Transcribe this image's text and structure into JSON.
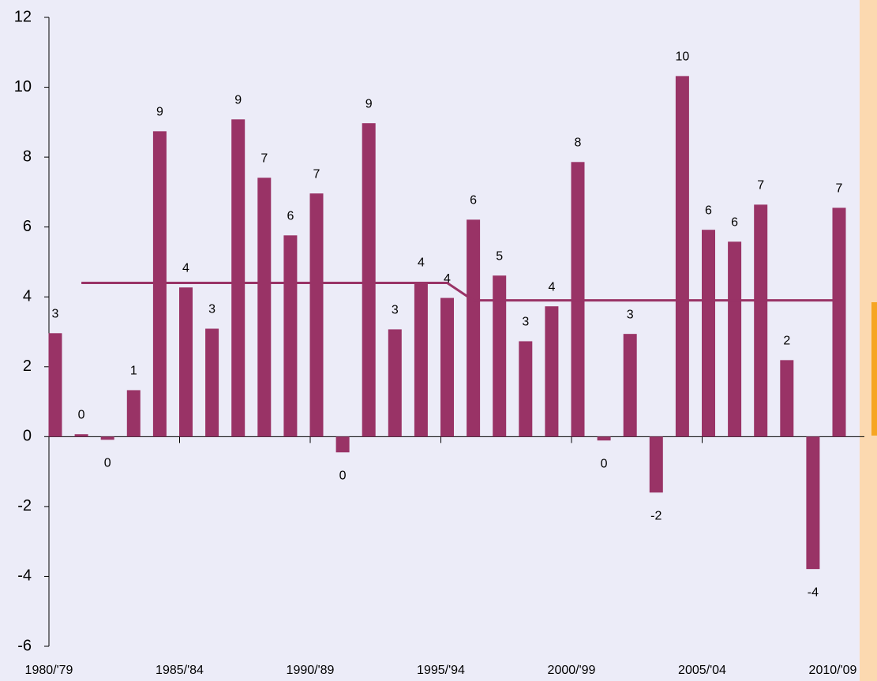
{
  "chart_data": {
    "type": "bar",
    "categories": [
      "1980/'79",
      null,
      null,
      null,
      null,
      "1985/'84",
      null,
      null,
      null,
      null,
      "1990/'89",
      null,
      null,
      null,
      null,
      "1995/'94",
      null,
      null,
      null,
      null,
      "2000/'99",
      null,
      null,
      null,
      null,
      "2005/'04",
      null,
      null,
      null,
      null,
      "2010/'09"
    ],
    "values": [
      2.96,
      0.07,
      -0.09,
      1.33,
      8.74,
      4.27,
      3.09,
      9.08,
      7.41,
      5.76,
      6.96,
      -0.45,
      8.97,
      3.07,
      4.43,
      3.97,
      6.21,
      4.61,
      2.73,
      3.73,
      7.86,
      -0.11,
      2.94,
      -1.6,
      10.32,
      5.92,
      5.58,
      6.64,
      2.19,
      -3.79,
      6.55
    ],
    "value_labels": [
      3,
      0,
      0,
      1,
      9,
      4,
      3,
      9,
      7,
      6,
      7,
      0,
      9,
      3,
      4,
      4,
      6,
      5,
      3,
      4,
      8,
      0,
      3,
      -2,
      10,
      6,
      6,
      7,
      2,
      -4,
      7
    ],
    "color": "#993366",
    "line": {
      "color": "#993366",
      "values": [
        null,
        4.4,
        4.4,
        4.4,
        4.4,
        4.4,
        4.4,
        4.4,
        4.4,
        4.4,
        4.4,
        4.4,
        4.4,
        4.4,
        4.4,
        4.4,
        3.9,
        3.9,
        3.9,
        3.9,
        3.9,
        3.9,
        3.9,
        3.9,
        3.9,
        3.9,
        3.9,
        3.9,
        3.9,
        3.9,
        3.9
      ]
    },
    "ylim": [
      -6,
      12
    ],
    "yticks": [
      -6,
      -4,
      -2,
      0,
      2,
      4,
      6,
      8,
      10,
      12
    ],
    "grid": false
  }
}
